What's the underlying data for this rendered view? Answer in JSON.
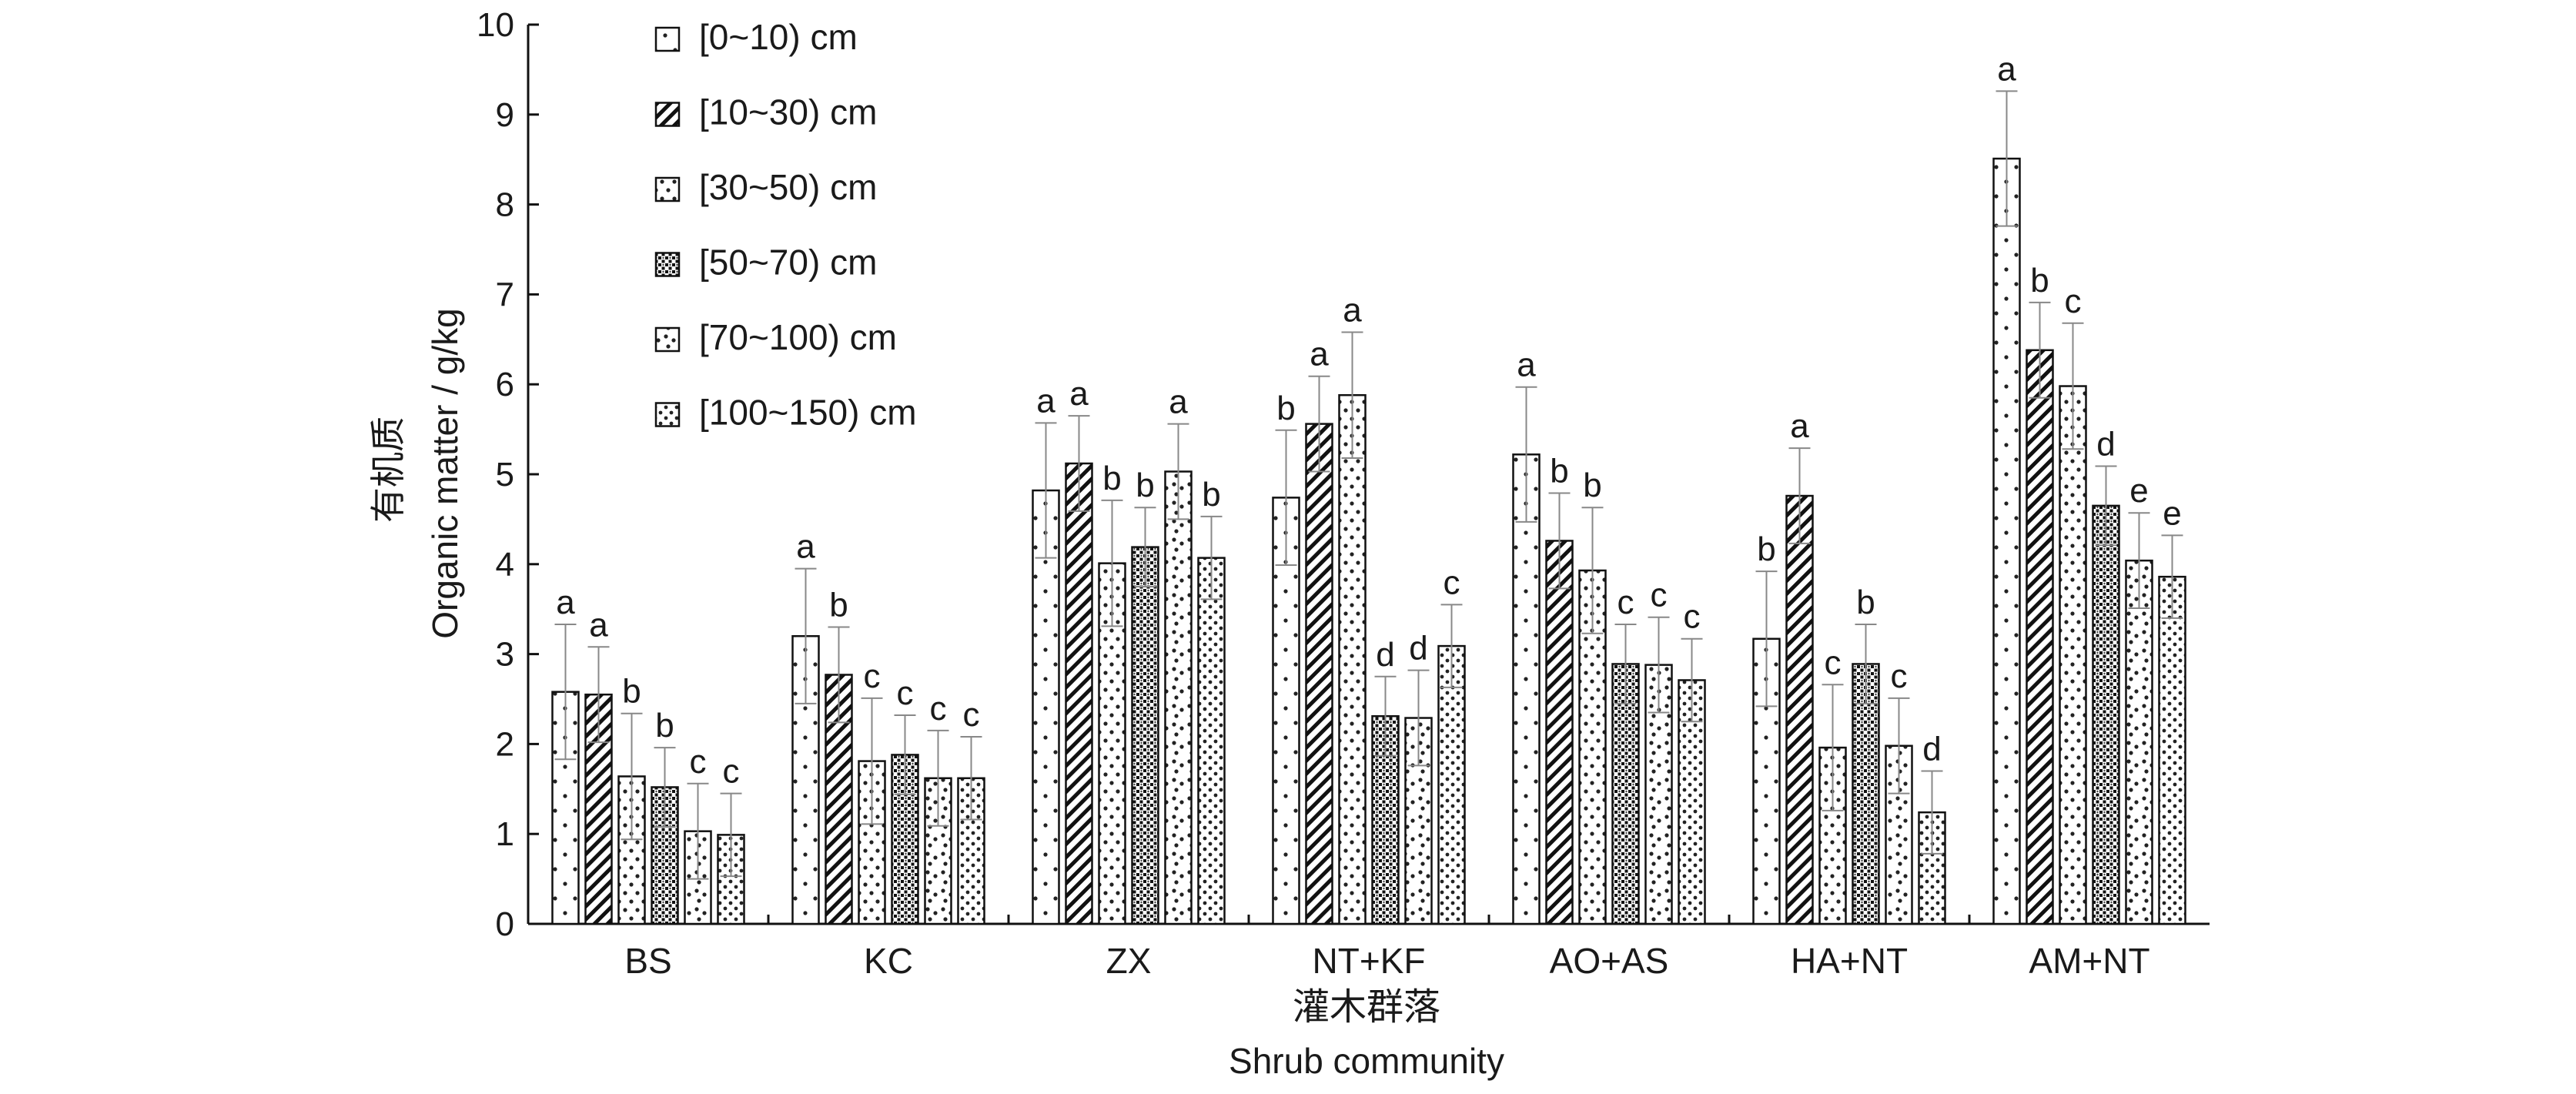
{
  "chart_data": {
    "type": "bar",
    "title": "",
    "xlabel_cn": "灌木群落",
    "xlabel": "Shrub community",
    "ylabel_cn": "有机质",
    "ylabel": "Organic matter / g/kg",
    "ylim": [
      0,
      10
    ],
    "yticks": [
      "0",
      "1",
      "2",
      "3",
      "4",
      "5",
      "6",
      "7",
      "8",
      "9",
      "10"
    ],
    "grid": false,
    "legend_position": "top-left",
    "categories": [
      "BS",
      "KC",
      "ZX",
      "NT+KF",
      "AO+AS",
      "HA+NT",
      "AM+NT"
    ],
    "series": [
      {
        "name": "[0~10) cm",
        "pattern": "dots-sparse",
        "values": [
          2.58,
          3.2,
          4.82,
          4.74,
          5.22,
          3.17,
          8.51
        ],
        "errors": [
          0.75,
          0.75,
          0.75,
          0.75,
          0.75,
          0.75,
          0.75
        ],
        "letters": [
          "a",
          "a",
          "a",
          "b",
          "a",
          "b",
          "a"
        ]
      },
      {
        "name": "[10~30) cm",
        "pattern": "diagonal",
        "values": [
          2.55,
          2.77,
          5.12,
          5.56,
          4.26,
          4.76,
          6.38
        ],
        "errors": [
          0.53,
          0.53,
          0.53,
          0.53,
          0.53,
          0.53,
          0.53
        ],
        "letters": [
          "a",
          "b",
          "a",
          "a",
          "b",
          "a",
          "b"
        ]
      },
      {
        "name": "[30~50) cm",
        "pattern": "dots-diag",
        "values": [
          1.64,
          1.81,
          4.01,
          5.88,
          3.93,
          1.96,
          5.98
        ],
        "errors": [
          0.7,
          0.7,
          0.7,
          0.7,
          0.7,
          0.7,
          0.7
        ],
        "letters": [
          "b",
          "c",
          "b",
          "a",
          "b",
          "c",
          "c"
        ]
      },
      {
        "name": "[50~70) cm",
        "pattern": "dense",
        "values": [
          1.52,
          1.88,
          4.19,
          2.31,
          2.89,
          2.89,
          4.65
        ],
        "errors": [
          0.44,
          0.44,
          0.44,
          0.44,
          0.44,
          0.44,
          0.44
        ],
        "letters": [
          "b",
          "c",
          "b",
          "d",
          "c",
          "b",
          "d"
        ]
      },
      {
        "name": "[70~100) cm",
        "pattern": "dots-mixed",
        "values": [
          1.03,
          1.62,
          5.03,
          2.29,
          2.88,
          1.98,
          4.04
        ],
        "errors": [
          0.53,
          0.53,
          0.53,
          0.53,
          0.53,
          0.53,
          0.53
        ],
        "letters": [
          "c",
          "c",
          "a",
          "d",
          "c",
          "c",
          "e"
        ]
      },
      {
        "name": "[100~150) cm",
        "pattern": "dots-grid",
        "values": [
          0.99,
          1.62,
          4.07,
          3.09,
          2.71,
          1.24,
          3.86
        ],
        "errors": [
          0.46,
          0.46,
          0.46,
          0.46,
          0.46,
          0.46,
          0.46
        ],
        "letters": [
          "c",
          "c",
          "b",
          "c",
          "c",
          "d",
          "e"
        ]
      }
    ]
  }
}
